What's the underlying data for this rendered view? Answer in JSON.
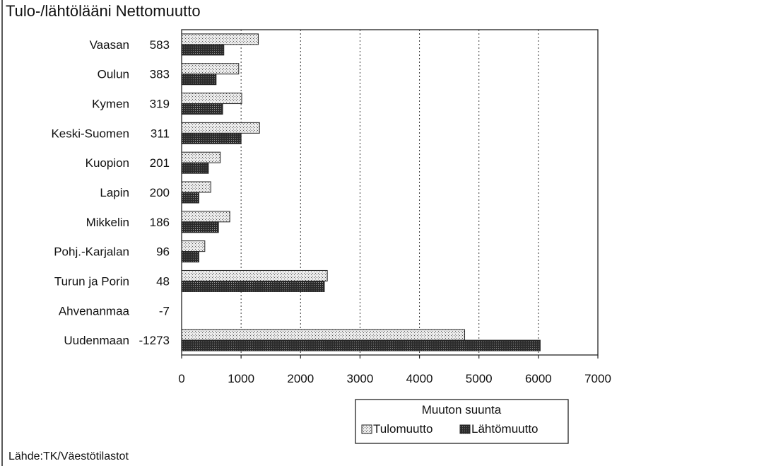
{
  "chart_data": {
    "type": "bar",
    "orientation": "horizontal",
    "title": "Tulo-/lähtölääni Nettomuutto",
    "categories": [
      "Vaasan",
      "Oulun",
      "Kymen",
      "Keski-Suomen",
      "Kuopion",
      "Lapin",
      "Mikkelin",
      "Pohj.-Karjalan",
      "Turun ja Porin",
      "Ahvenanmaa",
      "Uudenmaan"
    ],
    "net_values": [
      "583",
      "383",
      "319",
      "311",
      "201",
      "200",
      "186",
      "96",
      "48",
      "-7",
      "-1273"
    ],
    "series": [
      {
        "name": "Tulomuutto",
        "values": [
          1290,
          960,
          1010,
          1310,
          650,
          490,
          810,
          390,
          2450,
          0,
          4760
        ],
        "color": "#d8d8d8",
        "pattern": "light-dots"
      },
      {
        "name": "Lähtömuutto",
        "values": [
          710,
          580,
          690,
          1000,
          450,
          290,
          620,
          290,
          2400,
          0,
          6030
        ],
        "color": "#555555",
        "pattern": "dark-crosshatch"
      }
    ],
    "xlim": [
      0,
      7000
    ],
    "xticks": [
      "0",
      "1000",
      "2000",
      "3000",
      "4000",
      "5000",
      "6000",
      "7000"
    ],
    "grid": "vertical-dotted",
    "legend": {
      "title": "Muuton suunta",
      "position": "bottom-center"
    },
    "source": "Lähde:TK/Väestötilastot"
  }
}
